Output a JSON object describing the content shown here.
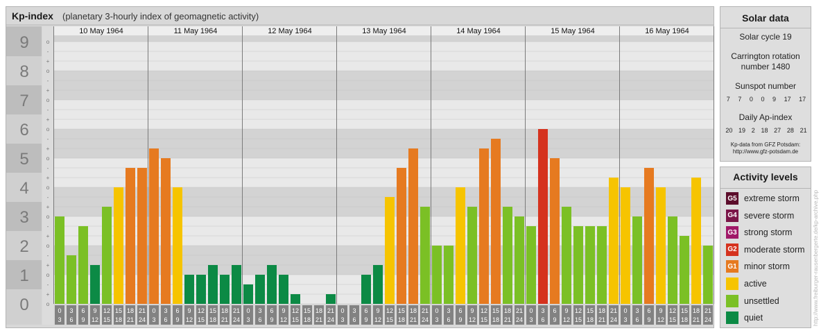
{
  "header": {
    "title": "Kp-index",
    "subtitle": "(planetary 3-hourly index of geomagnetic activity)"
  },
  "solar": {
    "title": "Solar data",
    "cycle": "Solar cycle 19",
    "carrington_line1": "Carrington rotation",
    "carrington_line2": "number 1480",
    "sunspot_label": "Sunspot number",
    "sunspot_values": [
      "7",
      "7",
      "0",
      "0",
      "9",
      "17",
      "17"
    ],
    "ap_label": "Daily Ap-index",
    "ap_values": [
      "20",
      "19",
      "2",
      "18",
      "27",
      "28",
      "21"
    ],
    "source_line1": "Kp-data from GFZ Potsdam:",
    "source_line2": "http://www.gfz-potsdam.de"
  },
  "activity": {
    "title": "Activity levels",
    "items": [
      {
        "code": "G5",
        "label": "extreme storm",
        "color": "#5c0d2b"
      },
      {
        "code": "G4",
        "label": "severe storm",
        "color": "#7a1548"
      },
      {
        "code": "G3",
        "label": "strong storm",
        "color": "#a01868"
      },
      {
        "code": "G2",
        "label": "moderate storm",
        "color": "#d5321e"
      },
      {
        "code": "G1",
        "label": "minor storm",
        "color": "#e67a20"
      },
      {
        "code": "",
        "label": "active",
        "color": "#f6c400"
      },
      {
        "code": "",
        "label": "unsettled",
        "color": "#7bc025"
      },
      {
        "code": "",
        "label": "quiet",
        "color": "#0c8a45"
      }
    ]
  },
  "watermark": "http://www.freiburger-rausenbergerte.de/kp-archive.php",
  "chart_data": {
    "type": "bar",
    "title": "Kp-index",
    "ylim": [
      0,
      9
    ],
    "y_major_ticks": [
      "0",
      "1",
      "2",
      "3",
      "4",
      "5",
      "6",
      "7",
      "8",
      "9"
    ],
    "y_minor_ticks": [
      "o",
      "+",
      "-"
    ],
    "days": [
      "10 May 1964",
      "11 May 1964",
      "12 May 1964",
      "13 May 1964",
      "14 May 1964",
      "15 May 1964",
      "16 May 1964"
    ],
    "interval_labels": [
      [
        "0",
        "3"
      ],
      [
        "3",
        "6"
      ],
      [
        "6",
        "9"
      ],
      [
        "9",
        "12"
      ],
      [
        "12",
        "15"
      ],
      [
        "15",
        "18"
      ],
      [
        "18",
        "21"
      ],
      [
        "21",
        "24"
      ]
    ],
    "values": [
      3.0,
      1.667,
      2.667,
      1.333,
      3.333,
      4.0,
      4.667,
      4.667,
      5.333,
      5.0,
      4.0,
      1.0,
      1.0,
      1.333,
      1.0,
      1.333,
      0.667,
      1.0,
      1.333,
      1.0,
      0.333,
      0.0,
      0.0,
      0.333,
      0.0,
      0.0,
      1.0,
      1.333,
      3.667,
      4.667,
      5.333,
      3.333,
      2.0,
      2.0,
      4.0,
      3.333,
      5.333,
      5.667,
      3.333,
      3.0,
      2.667,
      6.0,
      5.0,
      3.333,
      2.667,
      2.667,
      2.667,
      4.333,
      4.0,
      3.0,
      4.667,
      4.0,
      3.0,
      2.333,
      4.333,
      2.0
    ],
    "colors": {
      "quiet": "#0c8a45",
      "unsettled": "#7bc025",
      "active": "#f6c400",
      "minor": "#e67a20",
      "moderate": "#d5321e",
      "strong": "#a01868",
      "severe": "#7a1548",
      "extreme": "#5c0d2b"
    }
  }
}
